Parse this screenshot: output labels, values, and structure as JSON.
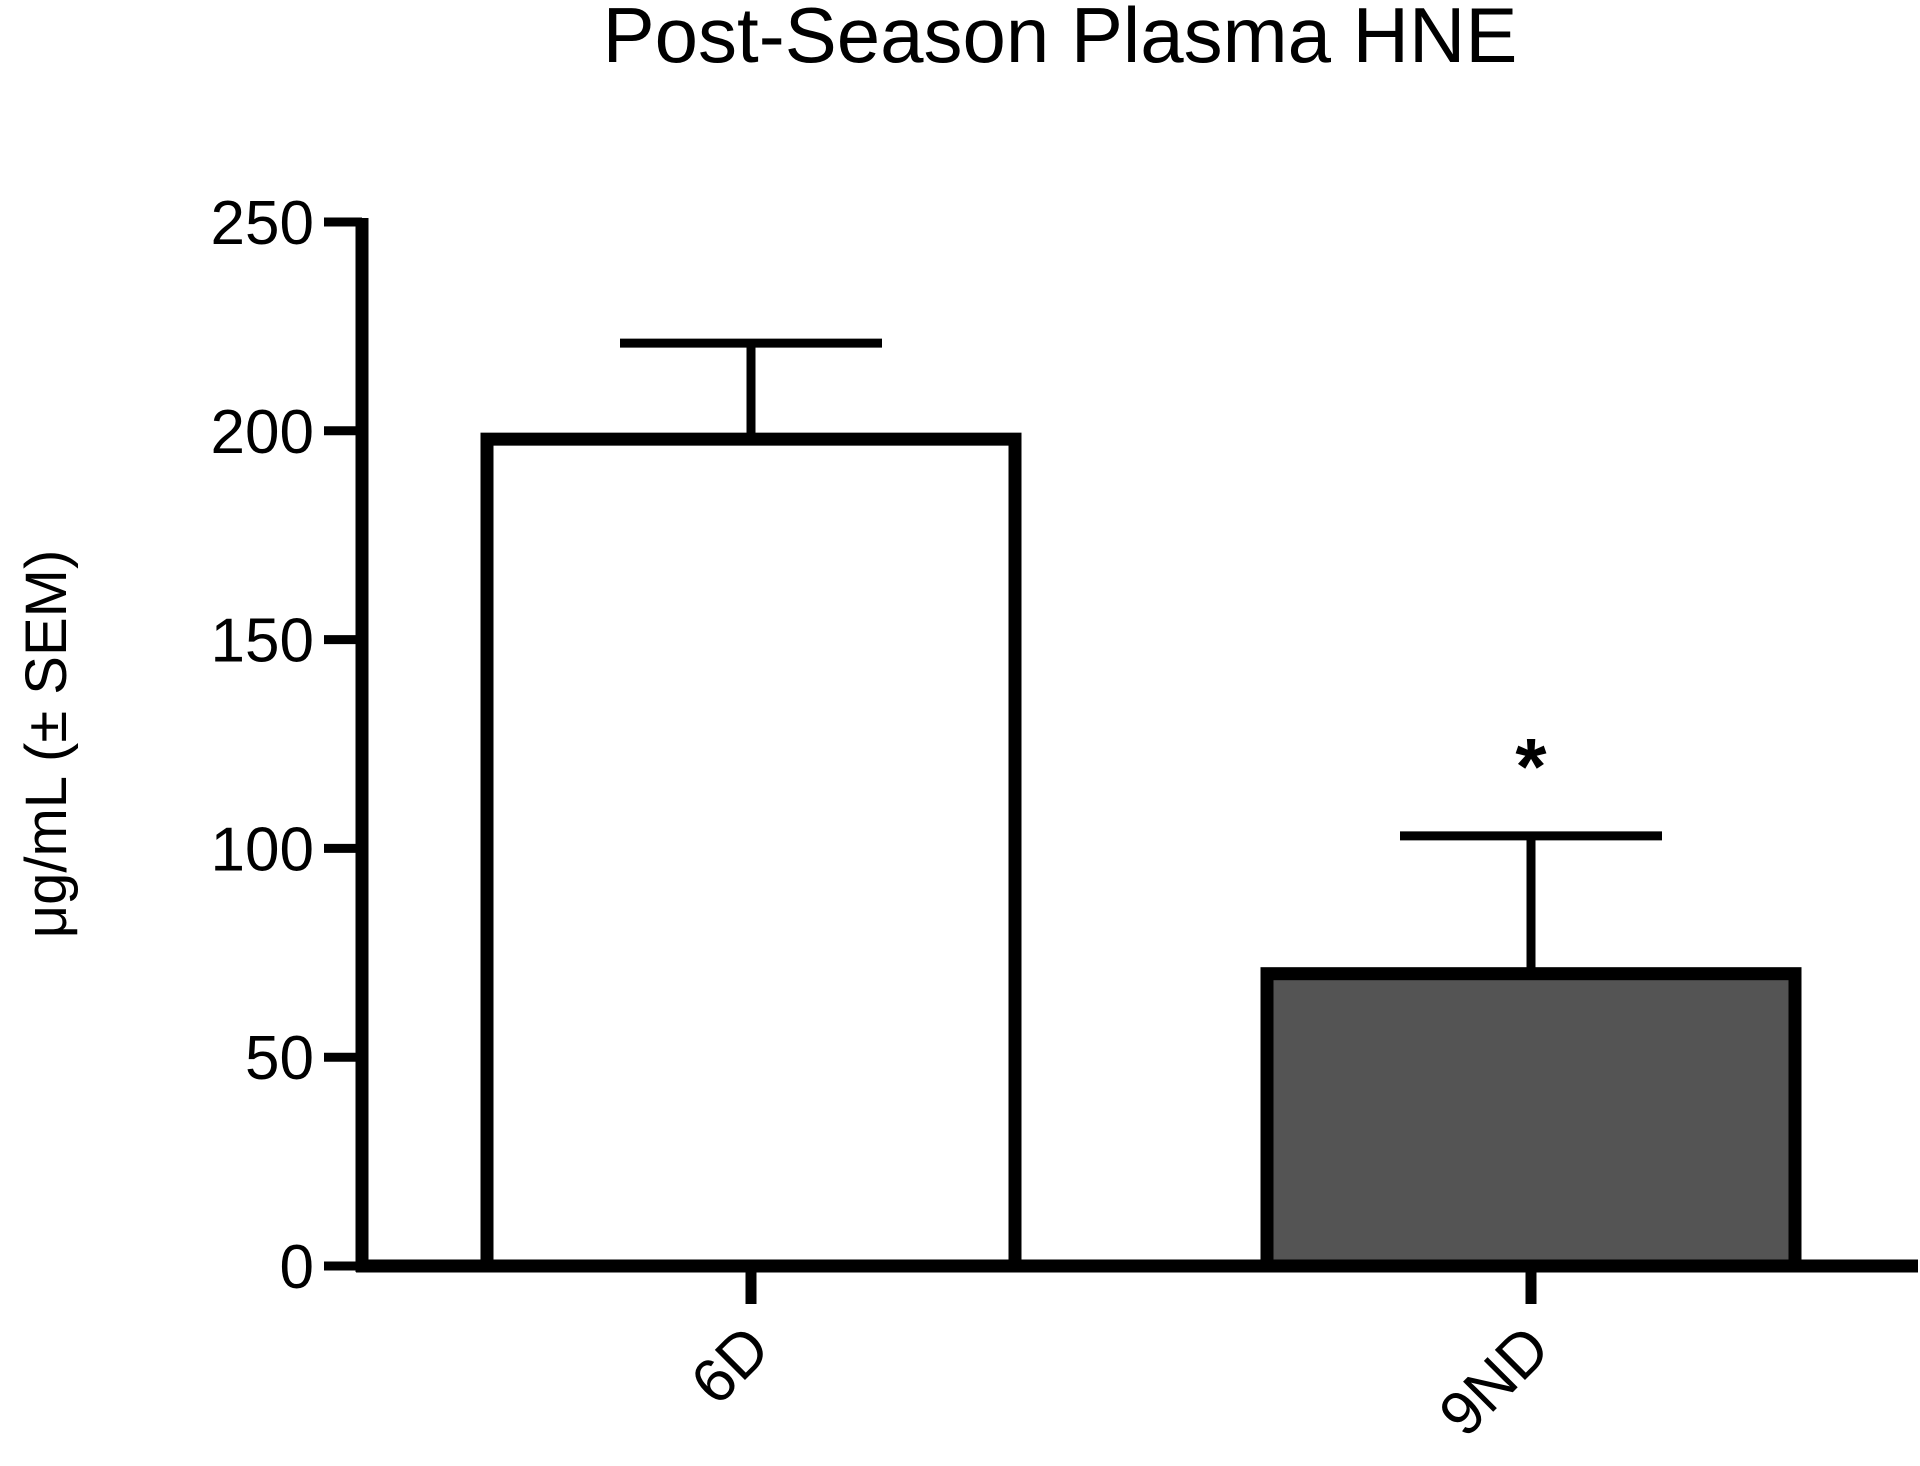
{
  "chart_data": {
    "type": "bar",
    "title": "Post-Season Plasma HNE",
    "xlabel": "",
    "ylabel": "μg/mL (± SEM)",
    "categories": [
      "6D",
      "9ND"
    ],
    "values": [
      198,
      70
    ],
    "error_upper": [
      221,
      103
    ],
    "annotations": [
      "",
      "*"
    ],
    "bar_colors": [
      "#ffffff",
      "#545454"
    ],
    "ylim": [
      0,
      250
    ],
    "yticks": [
      0,
      50,
      100,
      150,
      200,
      250
    ],
    "ytick_labels": [
      "0",
      "50",
      "100",
      "150",
      "200",
      "250"
    ],
    "grid": false,
    "legend": "none"
  }
}
